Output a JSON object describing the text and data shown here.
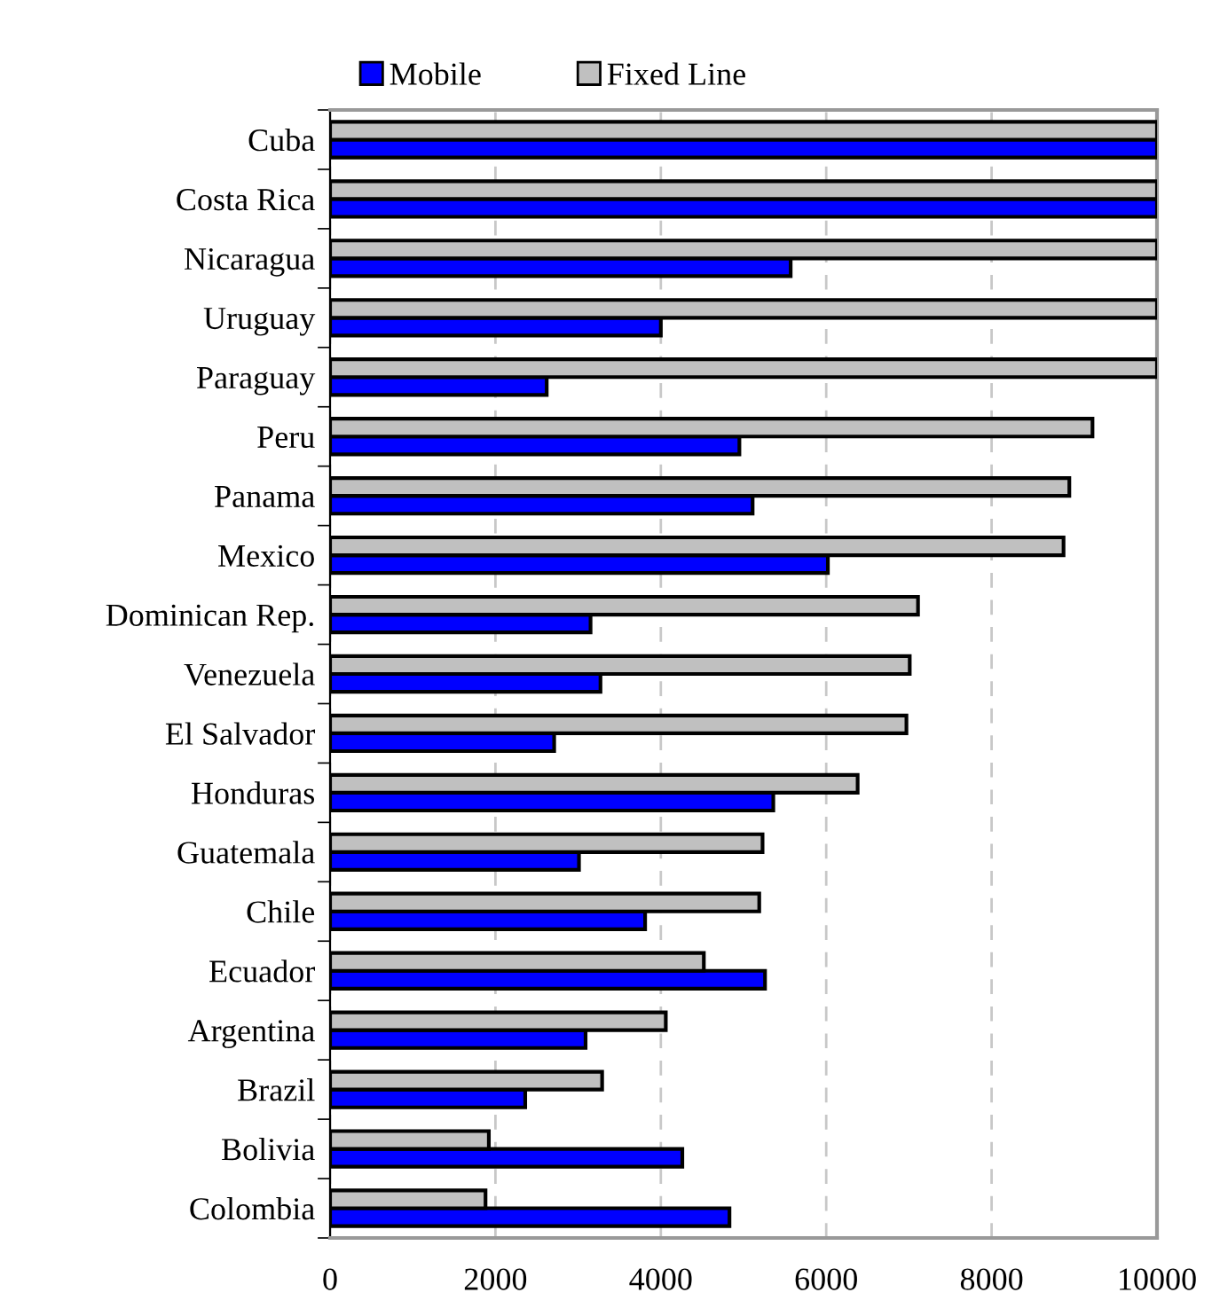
{
  "chart_data": {
    "type": "bar",
    "orientation": "horizontal",
    "categories": [
      "Cuba",
      "Costa Rica",
      "Nicaragua",
      "Uruguay",
      "Paraguay",
      "Peru",
      "Panama",
      "Mexico",
      "Dominican Rep.",
      "Venezuela",
      "El Salvador",
      "Honduras",
      "Guatemala",
      "Chile",
      "Ecuador",
      "Argentina",
      "Brazil",
      "Bolivia",
      "Colombia"
    ],
    "series": [
      {
        "name": "Mobile",
        "color": "#0000ff",
        "values": [
          10000,
          10000,
          5570,
          4000,
          2620,
          4950,
          5110,
          6020,
          3150,
          3270,
          2710,
          5360,
          3010,
          3810,
          5260,
          3090,
          2360,
          4260,
          4830
        ]
      },
      {
        "name": "Fixed Line",
        "color": "#c0c0c0",
        "values": [
          10000,
          10000,
          10000,
          10000,
          10000,
          9220,
          8940,
          8870,
          7110,
          7010,
          6970,
          6380,
          5230,
          5190,
          4520,
          4060,
          3290,
          1920,
          1880
        ]
      }
    ],
    "xlim": [
      0,
      10000
    ],
    "xticks": [
      0,
      2000,
      4000,
      6000,
      8000,
      10000
    ],
    "grid": "x",
    "legend": "top"
  }
}
